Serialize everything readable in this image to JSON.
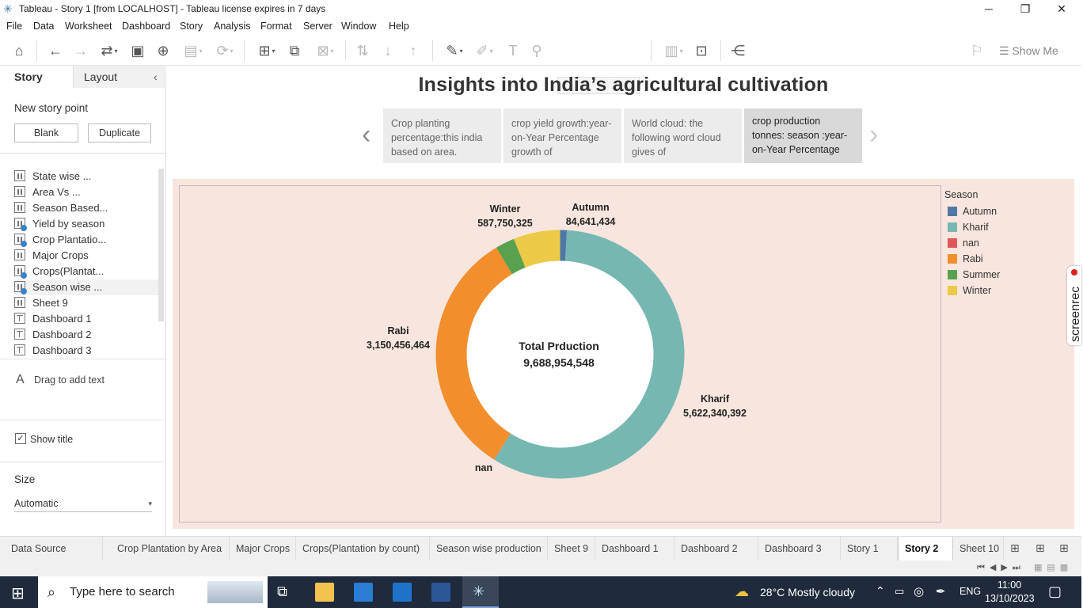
{
  "window": {
    "title": "Tableau - Story 1 [from LOCALHOST] - Tableau license expires in 7 days",
    "minimize": "─",
    "maximize": "❐",
    "close": "✕"
  },
  "menu": [
    "File",
    "Data",
    "Worksheet",
    "Dashboard",
    "Story",
    "Analysis",
    "Format",
    "Server",
    "Window",
    "Help"
  ],
  "toolbar": {
    "show_me_label": "Show Me"
  },
  "left_panel": {
    "tabs": [
      "Story",
      "Layout"
    ],
    "new_story_point": "New story point",
    "blank_label": "Blank",
    "duplicate_label": "Duplicate",
    "sheets": [
      {
        "label": "State wise ...",
        "icon": "bar",
        "check": false
      },
      {
        "label": "Area Vs ...",
        "icon": "bar",
        "check": false
      },
      {
        "label": "Season Based...",
        "icon": "bar",
        "check": false
      },
      {
        "label": "Yield by season",
        "icon": "bar",
        "check": true
      },
      {
        "label": "Crop Plantatio...",
        "icon": "bar",
        "check": true
      },
      {
        "label": "Major Crops",
        "icon": "bar",
        "check": false
      },
      {
        "label": "Crops(Plantat...",
        "icon": "bar",
        "check": true
      },
      {
        "label": "Season wise ...",
        "icon": "bar",
        "check": true
      },
      {
        "label": "Sheet 9",
        "icon": "bar",
        "check": false
      },
      {
        "label": "Dashboard 1",
        "icon": "grid",
        "check": false
      },
      {
        "label": "Dashboard 2",
        "icon": "grid",
        "check": false
      },
      {
        "label": "Dashboard 3",
        "icon": "grid",
        "check": false
      }
    ],
    "drag_text": "Drag to add text",
    "show_title": "Show title",
    "size_heading": "Size",
    "size_value": "Automatic"
  },
  "story": {
    "title": "Insights into India’s agricultural cultivation",
    "points": [
      "Crop planting percentage:this india based on area.",
      "crop yield growth:year-on-Year Percentage growth of",
      "World cloud: the following word  cloud gives of",
      "crop production tonnes: season :year-on-Year Percentage"
    ],
    "active_point": 3
  },
  "chart_data": {
    "type": "pie",
    "title": "",
    "center_label": "Total Prduction",
    "center_value": "9,688,954,548",
    "slices": [
      {
        "name": "Autumn",
        "value": 84641434,
        "label": "84,641,434",
        "color": "#4e79a7"
      },
      {
        "name": "Kharif",
        "value": 5622340392,
        "label": "5,622,340,392",
        "color": "#76b7b2"
      },
      {
        "name": "nan",
        "value": 0,
        "label": "",
        "color": "#e15759"
      },
      {
        "name": "Rabi",
        "value": 3150456464,
        "label": "3,150,456,464",
        "color": "#f28e2b"
      },
      {
        "name": "Summer",
        "value": 243765933,
        "label": "",
        "color": "#59a14f"
      },
      {
        "name": "Winter",
        "value": 587750325,
        "label": "587,750,325",
        "color": "#edc948"
      }
    ],
    "legend_title": "Season",
    "legend_position": "right"
  },
  "sheet_tabs": [
    "Data Source",
    "Crop Plantation by Area",
    "Major Crops",
    "Crops(Plantation by count)",
    "Season wise production",
    "Sheet 9",
    "Dashboard 1",
    "Dashboard 2",
    "Dashboard 3",
    "Story 1",
    "Story 2",
    "Sheet 10"
  ],
  "active_sheet_tab": "Story 2",
  "taskbar": {
    "search_placeholder": "Type here to search",
    "weather": "28°C  Mostly cloudy",
    "lang": "ENG",
    "time": "11:00",
    "date": "13/10/2023"
  },
  "screenrec": "screenrec"
}
